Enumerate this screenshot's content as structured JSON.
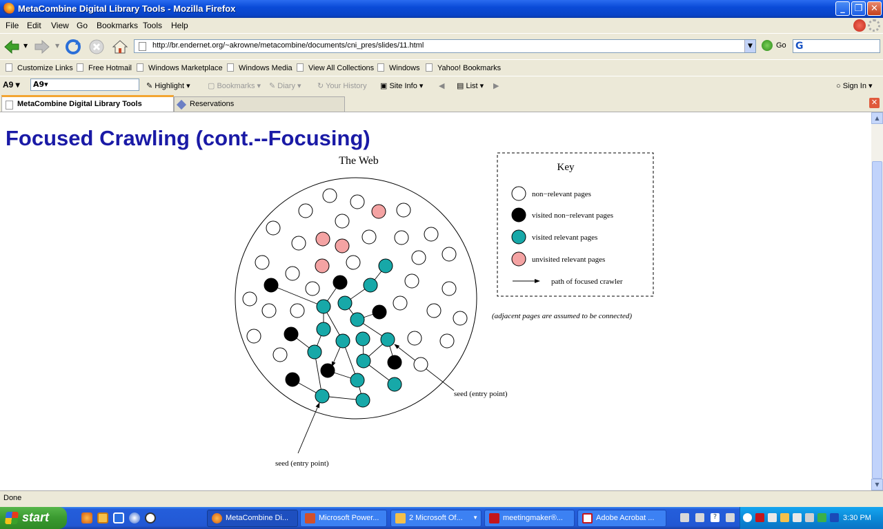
{
  "window": {
    "title": "MetaCombine Digital Library Tools - Mozilla Firefox"
  },
  "menu": [
    "File",
    "Edit",
    "View",
    "Go",
    "Bookmarks",
    "Tools",
    "Help"
  ],
  "nav": {
    "url": "http://br.endernet.org/~akrowne/metacombine/documents/cni_pres/slides/11.html",
    "go_label": "Go"
  },
  "links": [
    "Customize Links",
    "Free Hotmail",
    "Windows Marketplace",
    "Windows Media",
    "View All Collections",
    "Windows",
    "Yahoo! Bookmarks"
  ],
  "toolbar2": {
    "highlight": "Highlight",
    "bookmarks": "Bookmarks",
    "diary": "Diary",
    "history": "Your History",
    "siteinfo": "Site Info",
    "list": "List",
    "signin": "Sign In"
  },
  "tabs": [
    "MetaCombine Digital Library Tools",
    "Reservations"
  ],
  "slide": {
    "heading": "Focused Crawling (cont.--Focusing)",
    "web_label": "The Web",
    "key_title": "Key",
    "key_items": [
      "non−relevant pages",
      "visited non−relevant pages",
      "visited relevant pages",
      "unvisited relevant pages",
      "path of focused crawler"
    ],
    "note": "(adjacent pages are assumed to be connected)",
    "seed1": "seed (entry point)",
    "seed2": "seed (entry point)",
    "colors": {
      "visited_relevant": "#17a8a8",
      "unvisited_relevant": "#f4a3a3",
      "visited_nonrelevant": "#000000",
      "nonrelevant": "#ffffff"
    }
  },
  "status": "Done",
  "taskbar": {
    "start": "start",
    "tasks": [
      "MetaCombine Di...",
      "Microsoft Power...",
      "2 Microsoft Of...",
      "meetingmaker®...",
      "Adobe Acrobat ..."
    ],
    "clock": "3:30 PM"
  }
}
